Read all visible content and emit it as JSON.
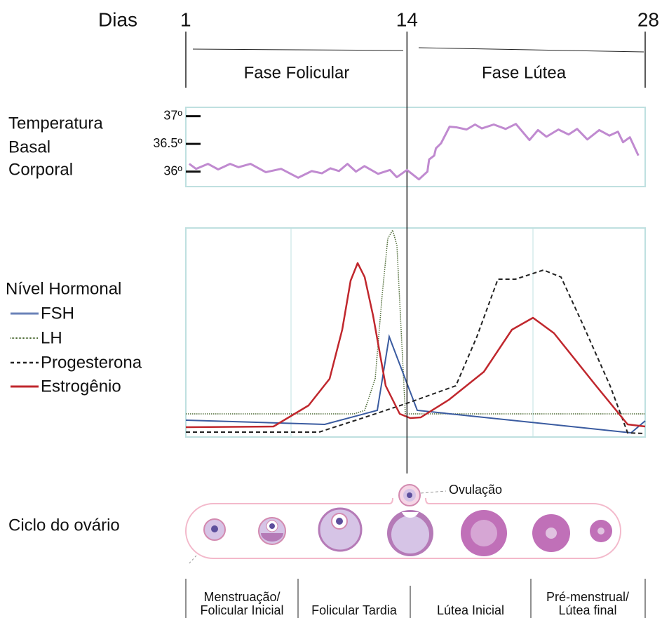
{
  "chart_data": {
    "type": "line",
    "x_label": "Dias",
    "y_label_lines": [
      "Temperatura",
      "Basal",
      "Corporal"
    ],
    "phases": [
      "Fase Folicular",
      "Fase Lútea"
    ],
    "x": [
      1.2,
      1.6,
      2.3,
      2.9,
      3.6,
      4.1,
      4.8,
      5.7,
      6.6,
      7.6,
      8.4,
      9.0,
      9.5,
      10.0,
      10.5,
      11.0,
      11.5,
      12.3,
      13.0,
      13.4,
      14.0,
      14.7,
      15.2,
      15.3,
      15.6,
      15.7,
      16.0,
      16.5,
      16.9,
      17.5,
      18.0,
      18.4,
      19.1,
      19.8,
      20.4,
      21.2,
      21.7,
      22.2,
      22.9,
      23.5,
      24.0,
      24.6,
      25.3,
      25.9,
      26.4,
      26.7,
      27.1,
      27.6
    ],
    "values": [
      36.14,
      36.05,
      36.14,
      36.04,
      36.14,
      36.08,
      36.14,
      35.99,
      36.05,
      35.89,
      36.01,
      35.97,
      36.06,
      36.01,
      36.14,
      36.0,
      36.1,
      35.96,
      36.03,
      35.9,
      36.03,
      35.86,
      36.0,
      36.22,
      36.29,
      36.42,
      36.51,
      36.81,
      36.8,
      36.76,
      36.85,
      36.78,
      36.85,
      36.77,
      36.86,
      36.57,
      36.75,
      36.63,
      36.76,
      36.67,
      36.77,
      36.58,
      36.75,
      36.65,
      36.72,
      36.53,
      36.62,
      36.29
    ],
    "color": "#c08ad0",
    "xlim": [
      1,
      28
    ],
    "xticks": [
      1,
      14,
      28
    ],
    "ylim": [
      35.73,
      37.16
    ],
    "yticks": [
      {
        "value": 36,
        "label": "36º"
      },
      {
        "value": 36.5,
        "label": "36.5º"
      },
      {
        "value": 37,
        "label": "37º"
      }
    ]
  },
  "hormones": {
    "title": "Nível Hormonal",
    "legend": [
      "FSH",
      "LH",
      "Progesterona",
      "Estrogênio"
    ]
  },
  "ovary": {
    "title": "Ciclo do ovário",
    "ovulation": "Ovulação"
  },
  "cycle_phases": [
    [
      "Menstruação/",
      "Folicular Inicial"
    ],
    [
      "Folicular Tardia"
    ],
    [
      "Lútea Inicial"
    ],
    [
      "Pré-menstrual/",
      "Lútea final"
    ]
  ]
}
